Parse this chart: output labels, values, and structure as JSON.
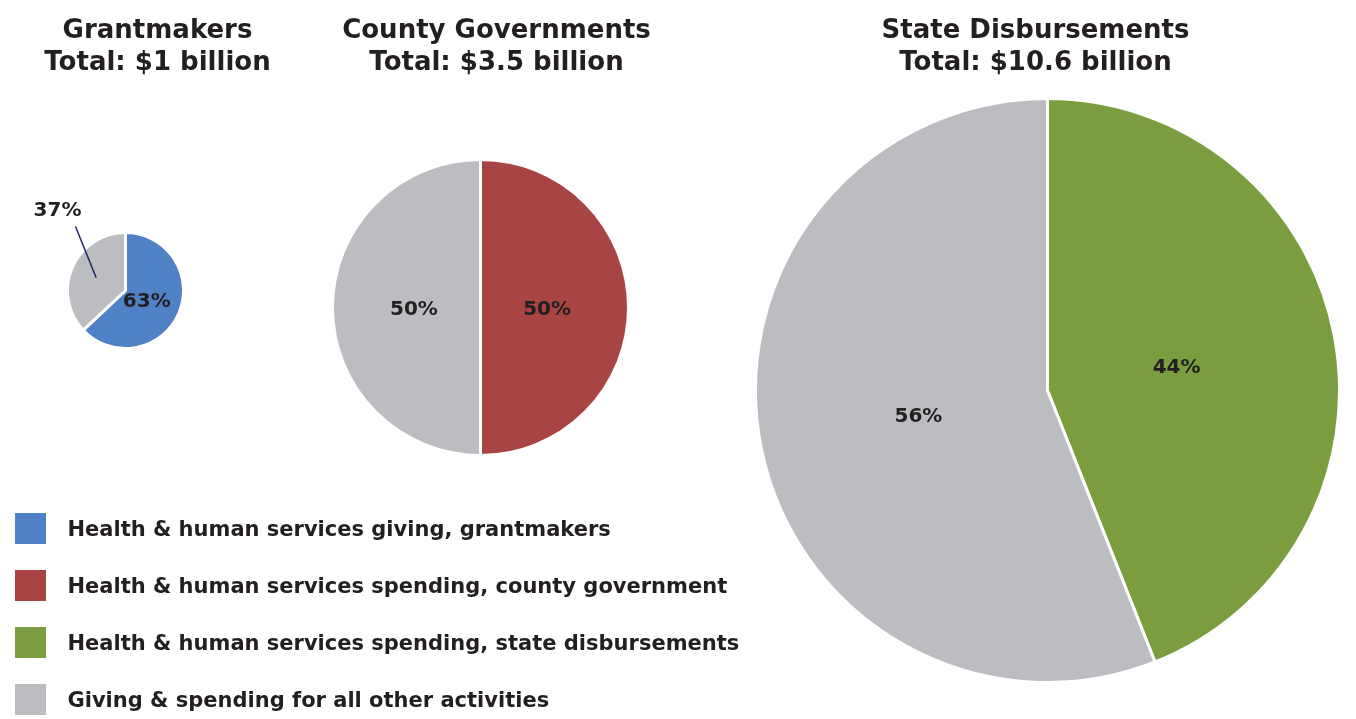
{
  "chart_data": [
    {
      "type": "pie",
      "title": "Grantmakers\nTotal: $1 billion",
      "categories": [
        "Health & human services giving, grantmakers",
        "Giving & spending for all other activities"
      ],
      "values": [
        63,
        37
      ],
      "value_labels": [
        "63%",
        "37%"
      ],
      "colors": [
        "#4f81c7",
        "#bcbdc1"
      ],
      "legend": "bottom right"
    },
    {
      "type": "pie",
      "title": "County Governments\nTotal: $3.5 billion",
      "categories": [
        "Health & human services spending, county government",
        null
      ],
      "values": [
        50,
        50
      ],
      "value_labels": [
        "50%",
        "50%"
      ],
      "colors": [
        "#a94444",
        "#bcbdc1"
      ],
      "legend": "bottom left"
    },
    {
      "type": "pie",
      "title": "State Disbursements\nTotal: $10.6 billion",
      "categories": [
        "Health & human services spending, state disbursements",
        null
      ],
      "values": [
        44,
        56
      ],
      "value_labels": [
        "44%",
        "56%"
      ],
      "colors": [
        "#7a9e3f",
        "#bcbdc1"
      ],
      "legend": "bottom left"
    }
  ]
}
